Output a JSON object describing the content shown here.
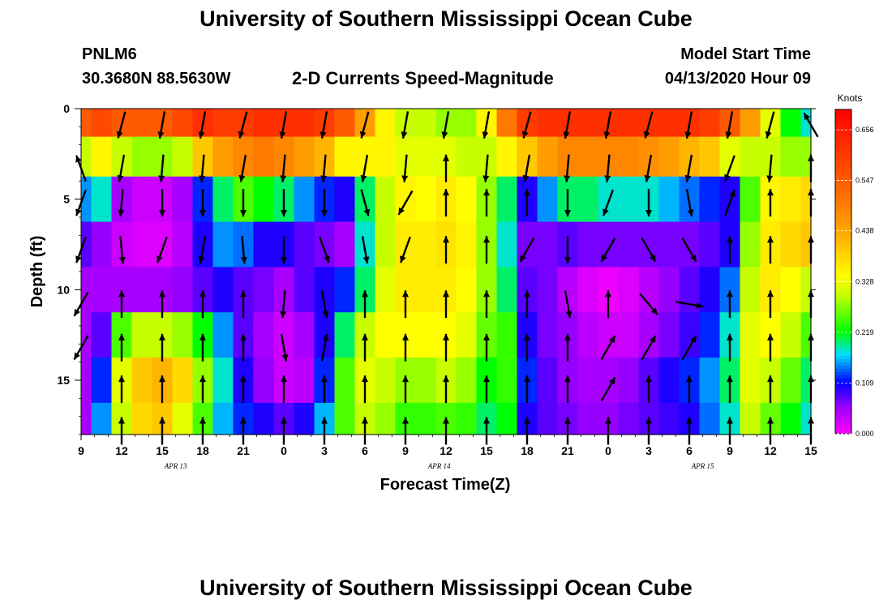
{
  "title_top": "University of Southern Mississippi Ocean Cube",
  "title_bottom": "University of Southern Mississippi Ocean Cube",
  "station": {
    "id": "PNLM6",
    "coords": "30.3680N 88.5630W"
  },
  "model_start": {
    "label": "Model Start Time",
    "value": "04/13/2020 Hour 09"
  },
  "chart_data": {
    "type": "heatmap",
    "title": "2-D Currents Speed-Magnitude",
    "xlabel": "Forecast Time(Z)",
    "ylabel": "Depth (ft)",
    "x_ticks": [
      "9",
      "12",
      "15",
      "18",
      "21",
      "0",
      "3",
      "6",
      "9",
      "12",
      "15",
      "18",
      "21",
      "0",
      "3",
      "6",
      "9",
      "12",
      "15"
    ],
    "x_tick_hours": [
      0,
      3,
      6,
      9,
      12,
      15,
      18,
      21,
      24,
      27,
      30,
      33,
      36,
      39,
      42,
      45,
      48,
      51,
      54
    ],
    "x_range_hours": [
      0,
      54
    ],
    "date_labels": [
      {
        "label": "APR 13",
        "hour": 7
      },
      {
        "label": "APR 14",
        "hour": 26.5
      },
      {
        "label": "APR 15",
        "hour": 46
      }
    ],
    "y_ticks": [
      0,
      5,
      10,
      15
    ],
    "y_range": [
      0,
      18
    ],
    "y_inverted": true,
    "colorbar": {
      "unit": "Knots",
      "ticks": [
        "0.656",
        "0.547",
        "0.438",
        "0.328",
        "0.219",
        "0.109",
        "0.000"
      ],
      "range": [
        0.0,
        0.7
      ]
    },
    "speed_columns": [
      {
        "h": 0,
        "v": [
          0.55,
          0.3,
          0.15,
          0.08,
          0.05,
          0.05,
          0.05,
          0.05
        ]
      },
      {
        "h": 1.5,
        "v": [
          0.58,
          0.35,
          0.18,
          0.06,
          0.05,
          0.08,
          0.12,
          0.15
        ]
      },
      {
        "h": 3,
        "v": [
          0.55,
          0.3,
          0.05,
          0.03,
          0.05,
          0.25,
          0.32,
          0.3
        ]
      },
      {
        "h": 4.5,
        "v": [
          0.55,
          0.28,
          0.03,
          0.02,
          0.05,
          0.3,
          0.4,
          0.38
        ]
      },
      {
        "h": 6,
        "v": [
          0.55,
          0.28,
          0.03,
          0.02,
          0.05,
          0.3,
          0.42,
          0.4
        ]
      },
      {
        "h": 7.5,
        "v": [
          0.58,
          0.3,
          0.05,
          0.04,
          0.06,
          0.28,
          0.38,
          0.32
        ]
      },
      {
        "h": 9,
        "v": [
          0.62,
          0.4,
          0.12,
          0.1,
          0.08,
          0.22,
          0.28,
          0.25
        ]
      },
      {
        "h": 10.5,
        "v": [
          0.6,
          0.45,
          0.2,
          0.15,
          0.1,
          0.15,
          0.18,
          0.16
        ]
      },
      {
        "h": 12,
        "v": [
          0.6,
          0.48,
          0.25,
          0.14,
          0.08,
          0.08,
          0.1,
          0.12
        ]
      },
      {
        "h": 13.5,
        "v": [
          0.62,
          0.5,
          0.22,
          0.1,
          0.07,
          0.05,
          0.06,
          0.1
        ]
      },
      {
        "h": 15,
        "v": [
          0.62,
          0.48,
          0.2,
          0.1,
          0.05,
          0.03,
          0.03,
          0.08
        ]
      },
      {
        "h": 16.5,
        "v": [
          0.62,
          0.45,
          0.15,
          0.08,
          0.08,
          0.05,
          0.04,
          0.1
        ]
      },
      {
        "h": 18,
        "v": [
          0.6,
          0.42,
          0.12,
          0.07,
          0.1,
          0.1,
          0.12,
          0.16
        ]
      },
      {
        "h": 19.5,
        "v": [
          0.55,
          0.35,
          0.1,
          0.05,
          0.12,
          0.2,
          0.25,
          0.25
        ]
      },
      {
        "h": 21,
        "v": [
          0.45,
          0.35,
          0.2,
          0.18,
          0.2,
          0.3,
          0.32,
          0.3
        ]
      },
      {
        "h": 22.5,
        "v": [
          0.35,
          0.35,
          0.3,
          0.3,
          0.32,
          0.34,
          0.3,
          0.28
        ]
      },
      {
        "h": 24,
        "v": [
          0.3,
          0.32,
          0.35,
          0.36,
          0.36,
          0.34,
          0.28,
          0.24
        ]
      },
      {
        "h": 25.5,
        "v": [
          0.3,
          0.32,
          0.34,
          0.36,
          0.36,
          0.34,
          0.28,
          0.24
        ]
      },
      {
        "h": 27,
        "v": [
          0.28,
          0.32,
          0.36,
          0.37,
          0.36,
          0.34,
          0.3,
          0.25
        ]
      },
      {
        "h": 28.5,
        "v": [
          0.28,
          0.3,
          0.34,
          0.35,
          0.34,
          0.32,
          0.28,
          0.24
        ]
      },
      {
        "h": 30,
        "v": [
          0.35,
          0.3,
          0.28,
          0.28,
          0.28,
          0.26,
          0.22,
          0.2
        ]
      },
      {
        "h": 31.5,
        "v": [
          0.5,
          0.35,
          0.2,
          0.18,
          0.2,
          0.24,
          0.24,
          0.22
        ]
      },
      {
        "h": 33,
        "v": [
          0.6,
          0.4,
          0.1,
          0.07,
          0.08,
          0.1,
          0.12,
          0.1
        ]
      },
      {
        "h": 34.5,
        "v": [
          0.62,
          0.45,
          0.15,
          0.07,
          0.07,
          0.07,
          0.08,
          0.08
        ]
      },
      {
        "h": 36,
        "v": [
          0.62,
          0.48,
          0.2,
          0.08,
          0.04,
          0.06,
          0.06,
          0.07
        ]
      },
      {
        "h": 37.5,
        "v": [
          0.62,
          0.48,
          0.2,
          0.07,
          0.02,
          0.04,
          0.05,
          0.06
        ]
      },
      {
        "h": 39,
        "v": [
          0.62,
          0.48,
          0.18,
          0.07,
          0.01,
          0.03,
          0.05,
          0.06
        ]
      },
      {
        "h": 40.5,
        "v": [
          0.62,
          0.48,
          0.18,
          0.07,
          0.02,
          0.03,
          0.06,
          0.07
        ]
      },
      {
        "h": 42,
        "v": [
          0.62,
          0.47,
          0.18,
          0.07,
          0.04,
          0.05,
          0.08,
          0.08
        ]
      },
      {
        "h": 43.5,
        "v": [
          0.62,
          0.45,
          0.16,
          0.07,
          0.06,
          0.07,
          0.1,
          0.09
        ]
      },
      {
        "h": 45,
        "v": [
          0.62,
          0.42,
          0.14,
          0.07,
          0.08,
          0.09,
          0.12,
          0.1
        ]
      },
      {
        "h": 46.5,
        "v": [
          0.6,
          0.4,
          0.12,
          0.08,
          0.1,
          0.12,
          0.15,
          0.14
        ]
      },
      {
        "h": 48,
        "v": [
          0.55,
          0.32,
          0.1,
          0.1,
          0.14,
          0.18,
          0.2,
          0.18
        ]
      },
      {
        "h": 49.5,
        "v": [
          0.45,
          0.3,
          0.25,
          0.28,
          0.3,
          0.32,
          0.32,
          0.3
        ]
      },
      {
        "h": 51,
        "v": [
          0.32,
          0.3,
          0.35,
          0.36,
          0.36,
          0.34,
          0.3,
          0.26
        ]
      },
      {
        "h": 52.5,
        "v": [
          0.22,
          0.28,
          0.36,
          0.38,
          0.34,
          0.3,
          0.26,
          0.22
        ]
      },
      {
        "h": 54,
        "v": [
          0.18,
          0.28,
          0.38,
          0.4,
          0.3,
          0.25,
          0.2,
          0.18
        ]
      }
    ],
    "speed_depths": [
      0.6,
      2.5,
      5,
      7.5,
      10,
      12.5,
      15,
      17.5
    ],
    "arrow_depths": [
      0.9,
      3.3,
      5.2,
      7.8,
      10.8,
      13.2,
      15.5,
      17.8
    ],
    "arrows": [
      {
        "h": 0,
        "dirs": [
          null,
          340,
          200,
          200,
          210,
          210,
          null,
          null
        ]
      },
      {
        "h": 3,
        "dirs": [
          195,
          190,
          185,
          175,
          0,
          0,
          0,
          0
        ]
      },
      {
        "h": 6,
        "dirs": [
          190,
          185,
          180,
          200,
          0,
          0,
          0,
          0
        ]
      },
      {
        "h": 9,
        "dirs": [
          190,
          185,
          180,
          190,
          0,
          0,
          0,
          0
        ]
      },
      {
        "h": 12,
        "dirs": [
          195,
          190,
          180,
          175,
          0,
          0,
          0,
          0
        ]
      },
      {
        "h": 15,
        "dirs": [
          190,
          185,
          180,
          180,
          185,
          170,
          0,
          0
        ]
      },
      {
        "h": 18,
        "dirs": [
          190,
          185,
          180,
          160,
          170,
          10,
          0,
          0
        ]
      },
      {
        "h": 21,
        "dirs": [
          195,
          190,
          165,
          170,
          0,
          0,
          0,
          0
        ]
      },
      {
        "h": 24,
        "dirs": [
          190,
          185,
          210,
          200,
          0,
          0,
          0,
          0
        ]
      },
      {
        "h": 27,
        "dirs": [
          190,
          0,
          0,
          0,
          0,
          0,
          0,
          0
        ]
      },
      {
        "h": 30,
        "dirs": [
          190,
          185,
          0,
          0,
          0,
          0,
          0,
          0
        ]
      },
      {
        "h": 33,
        "dirs": [
          195,
          190,
          0,
          210,
          0,
          0,
          0,
          0
        ]
      },
      {
        "h": 36,
        "dirs": [
          190,
          185,
          180,
          180,
          170,
          0,
          0,
          0
        ]
      },
      {
        "h": 39,
        "dirs": [
          190,
          185,
          200,
          210,
          0,
          30,
          30,
          0
        ]
      },
      {
        "h": 42,
        "dirs": [
          195,
          190,
          180,
          150,
          140,
          30,
          0,
          0
        ]
      },
      {
        "h": 45,
        "dirs": [
          190,
          190,
          170,
          150,
          100,
          30,
          0,
          0
        ]
      },
      {
        "h": 48,
        "dirs": [
          190,
          200,
          20,
          0,
          0,
          0,
          0,
          0
        ]
      },
      {
        "h": 51,
        "dirs": [
          195,
          185,
          0,
          0,
          0,
          0,
          0,
          0
        ]
      },
      {
        "h": 54,
        "dirs": [
          330,
          0,
          0,
          0,
          0,
          0,
          0,
          0
        ]
      }
    ]
  }
}
